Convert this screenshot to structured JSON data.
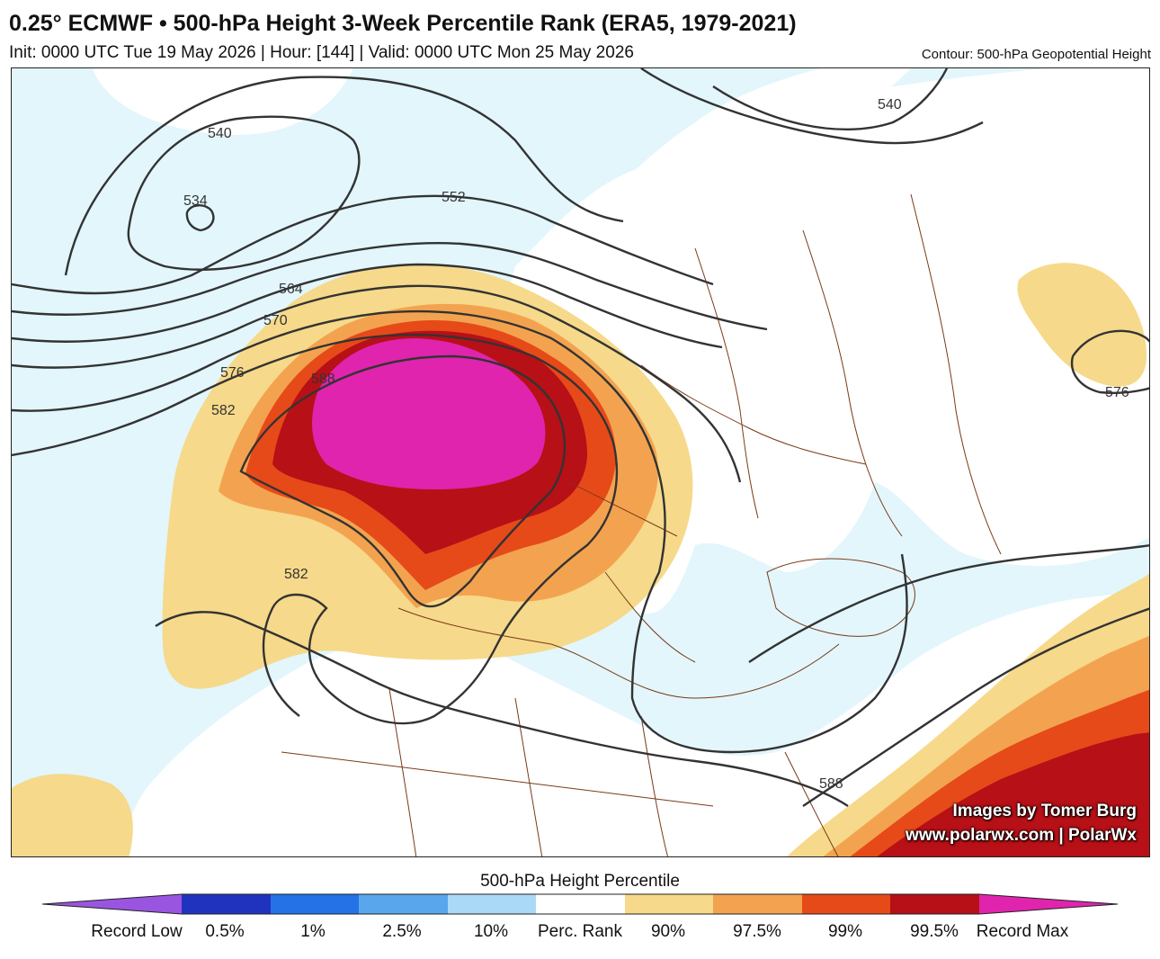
{
  "header": {
    "title": "0.25° ECMWF • 500-hPa Height 3-Week Percentile Rank (ERA5, 1979-2021)",
    "subtitle": "Init: 0000 UTC Tue 19 May 2026 | Hour: [144] | Valid: 0000 UTC Mon 25 May 2026",
    "contour_note": "Contour: 500-hPa Geopotential Height"
  },
  "map": {
    "ocean_color": "#e2f6fc",
    "land_neutral_color": "#ffffff",
    "border_color": "#7a3a17",
    "contour_color": "#333333",
    "contour_labels": [
      "540",
      "534",
      "552",
      "564",
      "570",
      "576",
      "582",
      "588",
      "540",
      "576",
      "588",
      "582"
    ]
  },
  "credits": {
    "line1": "Images by Tomer Burg",
    "line2": "www.polarwx.com | PolarWx"
  },
  "legend": {
    "title": "500-hPa Height Percentile",
    "colors": [
      "#9a55e0",
      "#1f33bf",
      "#2472e6",
      "#5aa6ec",
      "#aad9f7",
      "#ffffff",
      "#f6d98a",
      "#f3a34f",
      "#e64a19",
      "#b71017",
      "#e024ae"
    ],
    "tick_labels": [
      "Record Low",
      "0.5%",
      "1%",
      "2.5%",
      "10%",
      "Perc. Rank",
      "90%",
      "97.5%",
      "99%",
      "99.5%",
      "Record Max"
    ]
  }
}
